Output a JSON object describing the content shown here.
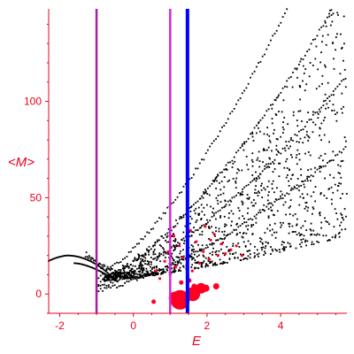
{
  "chart_data": {
    "type": "scatter",
    "title": "",
    "xlabel": "E",
    "ylabel": "<M>",
    "xlim": [
      -2.3,
      5.8
    ],
    "ylim": [
      -10,
      148
    ],
    "xticks": [
      -2,
      0,
      2,
      4
    ],
    "yticks": [
      0,
      50,
      100
    ],
    "grid": false,
    "colors": {
      "axis": "#e8001c",
      "points": "#000000",
      "highlight": "#ff0022",
      "line_purple": "#a020a0",
      "line_magenta": "#dd22dd",
      "line_blue": "#0000ff"
    },
    "vertical_lines": [
      {
        "x": -1.0,
        "color": "#a020a0",
        "width": 2.5
      },
      {
        "x": 1.0,
        "color": "#dd22dd",
        "width": 2.5
      },
      {
        "x": 1.47,
        "color": "#0000ff",
        "width": 4
      }
    ],
    "red_points": [
      {
        "x": 1.27,
        "y": -3,
        "r": 11
      },
      {
        "x": 1.13,
        "y": -2,
        "r": 7
      },
      {
        "x": 1.62,
        "y": 0,
        "r": 8
      },
      {
        "x": 1.84,
        "y": 3,
        "r": 6
      },
      {
        "x": 1.97,
        "y": 3,
        "r": 4
      },
      {
        "x": 2.25,
        "y": 4,
        "r": 3.5
      },
      {
        "x": 1.65,
        "y": 4,
        "r": 3
      },
      {
        "x": 1.52,
        "y": 7,
        "r": 2.5
      },
      {
        "x": 1.3,
        "y": 6,
        "r": 2.5
      },
      {
        "x": 0.55,
        "y": -4,
        "r": 2.5
      },
      {
        "x": 0.72,
        "y": 8,
        "r": 1.6
      },
      {
        "x": 1.0,
        "y": 10,
        "r": 1.6
      },
      {
        "x": 1.15,
        "y": 14,
        "r": 1.6
      },
      {
        "x": 1.35,
        "y": 19,
        "r": 1.6
      },
      {
        "x": 1.6,
        "y": 12,
        "r": 1.6
      },
      {
        "x": 1.8,
        "y": 16,
        "r": 1.6
      },
      {
        "x": 1.9,
        "y": 22,
        "r": 1.6
      },
      {
        "x": 2.05,
        "y": 18,
        "r": 1.6
      },
      {
        "x": 2.3,
        "y": 20,
        "r": 1.6
      },
      {
        "x": 2.5,
        "y": 21,
        "r": 1.6
      },
      {
        "x": 2.65,
        "y": 23,
        "r": 1.6
      },
      {
        "x": 0.85,
        "y": 17,
        "r": 1.6
      },
      {
        "x": 1.25,
        "y": 25,
        "r": 1.6
      },
      {
        "x": 1.7,
        "y": 27,
        "r": 1.6
      },
      {
        "x": 2.1,
        "y": 28,
        "r": 1.6
      },
      {
        "x": 0.95,
        "y": 22,
        "r": 1.6
      },
      {
        "x": 1.45,
        "y": 15,
        "r": 1.6
      },
      {
        "x": 2.4,
        "y": 26,
        "r": 1.6
      },
      {
        "x": 1.55,
        "y": 33,
        "r": 1.6
      },
      {
        "x": 2.2,
        "y": 31,
        "r": 1.6
      },
      {
        "x": 0.6,
        "y": 12,
        "r": 1.6
      },
      {
        "x": 1.1,
        "y": 30,
        "r": 1.6
      },
      {
        "x": 1.95,
        "y": 35,
        "r": 1.6
      },
      {
        "x": 2.8,
        "y": 25,
        "r": 1.6
      },
      {
        "x": 2.95,
        "y": 20,
        "r": 1.6
      }
    ],
    "bands": [
      {
        "a": 4,
        "b": 10,
        "p": 0.95
      },
      {
        "a": 2,
        "b": 7.5,
        "p": 0.95
      },
      {
        "a": 1,
        "b": 5.3,
        "p": 0.95
      },
      {
        "a": 0,
        "b": 3.6,
        "p": 0.95
      }
    ]
  }
}
